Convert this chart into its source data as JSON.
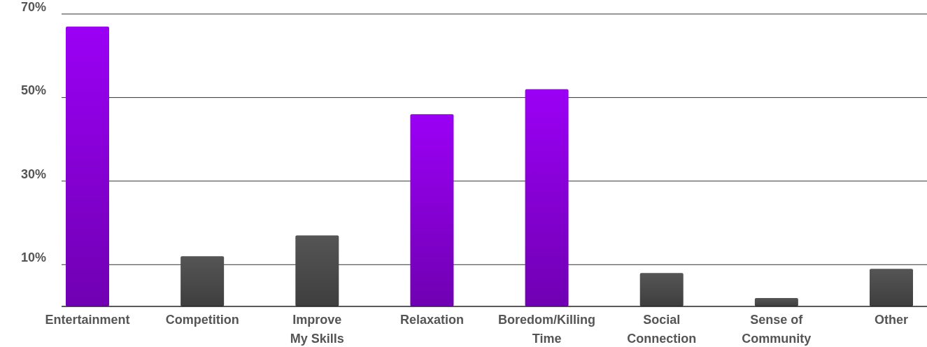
{
  "chart_data": {
    "type": "bar",
    "categories": [
      "Entertainment",
      "Competition",
      "Improve My Skills",
      "Relaxation",
      "Boredom/Killing Time",
      "Social Connection",
      "Sense of Community",
      "Other"
    ],
    "values": [
      67,
      12,
      17,
      46,
      52,
      8,
      2,
      9
    ],
    "colors": [
      "#9b00f5",
      "#555555",
      "#555555",
      "#9b00f5",
      "#9b00f5",
      "#555555",
      "#555555",
      "#555555"
    ],
    "ylim": [
      0,
      70
    ],
    "yticks": [
      {
        "value": 10,
        "label": "10%"
      },
      {
        "value": 30,
        "label": "30%"
      },
      {
        "value": 50,
        "label": "50%"
      },
      {
        "value": 70,
        "label": "70%"
      }
    ],
    "grid": "y"
  }
}
